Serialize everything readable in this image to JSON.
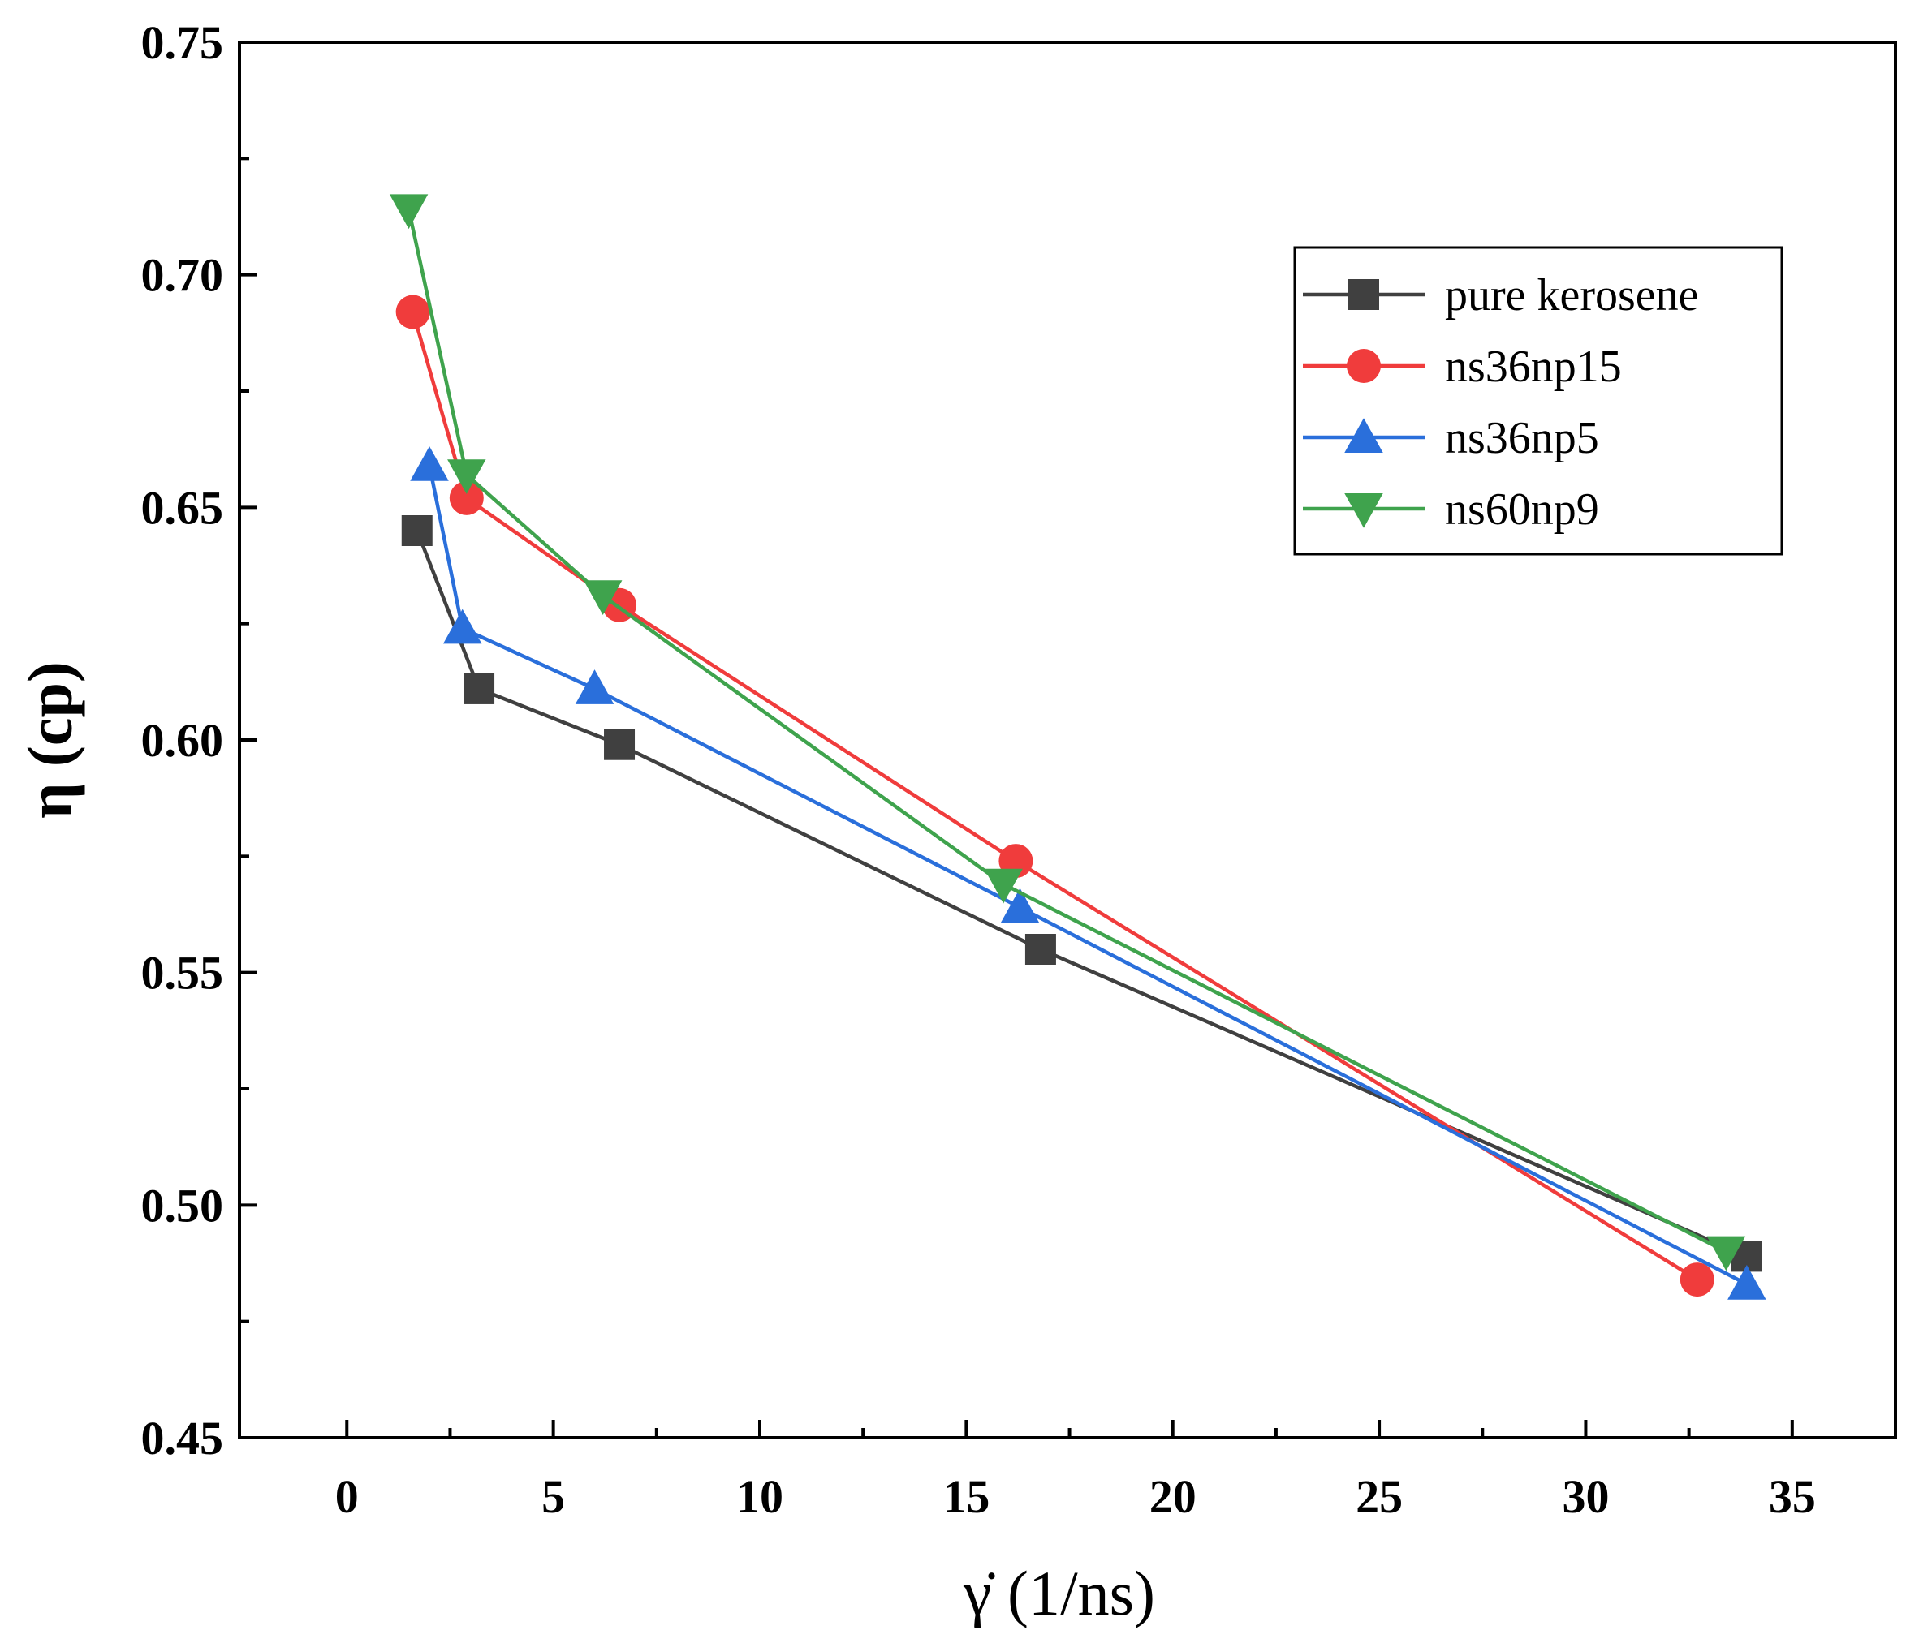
{
  "chart_data": {
    "type": "line",
    "title": "",
    "xlabel": "γ̇ (1/ns)",
    "ylabel": "η (cp)",
    "xlim": [
      -2.6,
      37.5
    ],
    "ylim": [
      0.45,
      0.75
    ],
    "xticks": [
      0,
      5,
      10,
      15,
      20,
      25,
      30,
      35
    ],
    "yticks": [
      0.45,
      0.5,
      0.55,
      0.6,
      0.65,
      0.7,
      0.75
    ],
    "xtick_labels": [
      "0",
      "5",
      "10",
      "15",
      "20",
      "25",
      "30",
      "35"
    ],
    "ytick_labels": [
      "0.45",
      "0.50",
      "0.55",
      "0.60",
      "0.65",
      "0.70",
      "0.75"
    ],
    "grid": false,
    "legend_position": "top-right",
    "series": [
      {
        "name": "pure kerosene",
        "color": "#404040",
        "marker": "square",
        "x": [
          1.7,
          3.2,
          6.6,
          16.8,
          33.9
        ],
        "y": [
          0.645,
          0.611,
          0.599,
          0.555,
          0.489
        ]
      },
      {
        "name": "ns36np15",
        "color": "#f03c3c",
        "marker": "circle",
        "x": [
          1.6,
          2.9,
          6.6,
          16.2,
          32.7
        ],
        "y": [
          0.692,
          0.652,
          0.629,
          0.574,
          0.484
        ]
      },
      {
        "name": "ns36np5",
        "color": "#2a6fdb",
        "marker": "triangle-up",
        "x": [
          2.0,
          2.8,
          6.0,
          16.3,
          33.9
        ],
        "y": [
          0.659,
          0.624,
          0.611,
          0.564,
          0.483
        ]
      },
      {
        "name": "ns60np9",
        "color": "#3fa34d",
        "marker": "triangle-down",
        "x": [
          1.5,
          2.9,
          6.2,
          15.9,
          33.4
        ],
        "y": [
          0.714,
          0.657,
          0.631,
          0.569,
          0.49
        ]
      }
    ]
  }
}
